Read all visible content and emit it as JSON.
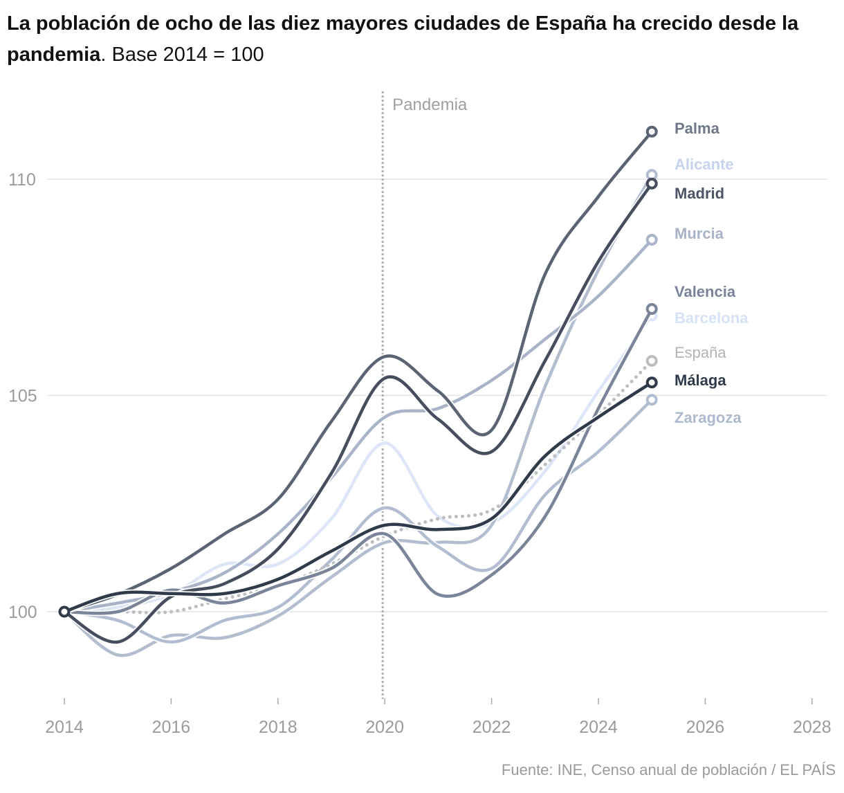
{
  "title_bold": "La población de ocho de las diez mayores ciudades de España ha crecido desde la pandemia",
  "title_suffix": ". Base 2014 = 100",
  "source": "Fuente: INE, Censo anual de población / EL PAÍS",
  "chart_data": {
    "type": "line",
    "title": "La población de ocho de las diez mayores ciudades de España ha crecido desde la pandemia. Base 2014 = 100",
    "xlabel": "",
    "ylabel": "",
    "xlim": [
      2014,
      2028
    ],
    "ylim": [
      98,
      112
    ],
    "x_ticks": [
      "2014",
      "2016",
      "2018",
      "2020",
      "2022",
      "2024",
      "2026",
      "2028"
    ],
    "y_ticks": [
      "100",
      "105",
      "110"
    ],
    "grid": "horizontal",
    "annotation": {
      "label": "Pandemia",
      "x": 2020
    },
    "x": [
      2014,
      2015,
      2016,
      2017,
      2018,
      2019,
      2020,
      2021,
      2022,
      2023,
      2024,
      2025
    ],
    "series": [
      {
        "name": "Barcelona",
        "color": "#dce6f8",
        "label_color": "#d6e2f7",
        "dotted": false,
        "values": [
          100,
          100.1,
          100.4,
          101.1,
          101.1,
          102.15,
          103.9,
          102.2,
          102.05,
          103.25,
          105.1,
          106.85
        ]
      },
      {
        "name": "Alicante",
        "color": "#b3bdd0",
        "label_color": "#c5d3ed",
        "dotted": false,
        "values": [
          100,
          99.0,
          99.45,
          99.4,
          99.9,
          100.8,
          101.6,
          101.6,
          102.0,
          105.2,
          107.9,
          110.1
        ]
      },
      {
        "name": "Zaragoza",
        "color": "#b2bdd2",
        "label_color": "#aeb9ce",
        "dotted": false,
        "values": [
          100,
          99.8,
          99.3,
          99.8,
          100.1,
          101.2,
          102.4,
          101.5,
          101.0,
          102.7,
          103.7,
          104.9
        ]
      },
      {
        "name": "Murcia",
        "color": "#aab4c8",
        "label_color": "#a9b3c8",
        "dotted": false,
        "values": [
          100,
          100.2,
          100.45,
          100.9,
          101.8,
          103.1,
          104.5,
          104.7,
          105.35,
          106.3,
          107.3,
          108.6
        ]
      },
      {
        "name": "España",
        "color": "#bcbec1",
        "label_color": "#b4b4b4",
        "dotted": true,
        "values": [
          100,
          100.0,
          100.0,
          100.3,
          100.6,
          101.1,
          101.75,
          102.15,
          102.35,
          103.4,
          104.55,
          105.8
        ]
      },
      {
        "name": "Valencia",
        "color": "#7b8599",
        "label_color": "#7a8499",
        "dotted": false,
        "values": [
          100,
          100.0,
          100.5,
          100.2,
          100.6,
          101.0,
          101.8,
          100.4,
          100.85,
          102.2,
          104.7,
          107.0
        ]
      },
      {
        "name": "Palma",
        "color": "#5a6474",
        "label_color": "#6e7789",
        "dotted": false,
        "values": [
          100,
          100.4,
          101.0,
          101.8,
          102.6,
          104.4,
          105.9,
          105.1,
          104.2,
          107.8,
          109.6,
          111.1
        ]
      },
      {
        "name": "Madrid",
        "color": "#454d5e",
        "label_color": "#4c5466",
        "dotted": false,
        "values": [
          100,
          99.3,
          100.35,
          100.65,
          101.45,
          103.2,
          105.4,
          104.45,
          103.7,
          105.8,
          108.1,
          109.9
        ]
      },
      {
        "name": "Málaga",
        "color": "#2f3a4b",
        "label_color": "#2f3a4b",
        "dotted": false,
        "values": [
          100,
          100.42,
          100.42,
          100.42,
          100.75,
          101.4,
          102.0,
          101.9,
          102.15,
          103.6,
          104.5,
          105.3
        ]
      }
    ]
  }
}
